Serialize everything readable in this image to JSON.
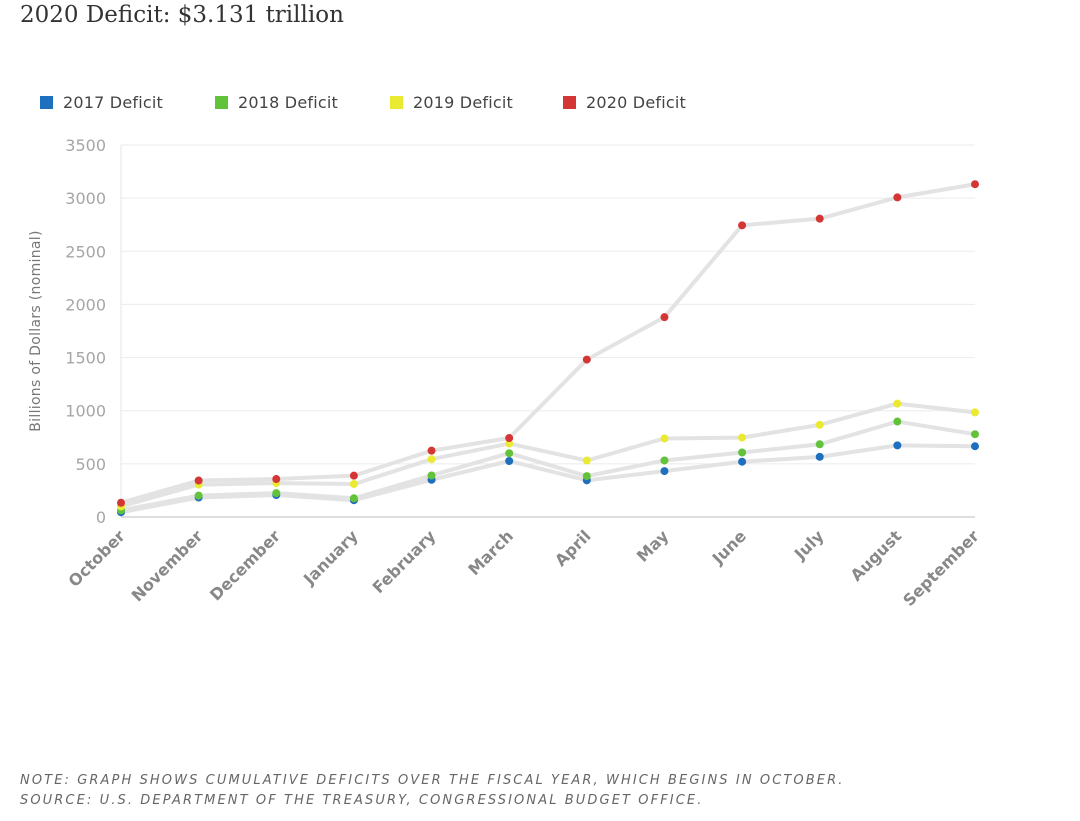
{
  "title": "2020 Deficit: $3.131 trillion",
  "note": "NOTE: GRAPH SHOWS CUMULATIVE DEFICITS OVER THE FISCAL YEAR, WHICH BEGINS IN OCTOBER.",
  "source": "SOURCE: U.S. DEPARTMENT OF THE TREASURY, CONGRESSIONAL BUDGET OFFICE.",
  "chart_data": {
    "type": "line",
    "title": "2020 Deficit: $3.131 trillion",
    "xlabel": "",
    "ylabel": "Billions of Dollars (nominal)",
    "ylim": [
      0,
      3500
    ],
    "yticks": [
      0,
      500,
      1000,
      1500,
      2000,
      2500,
      3000,
      3500
    ],
    "grid": true,
    "legend_position": "top-left",
    "line_color": "#e3e3e3",
    "categories": [
      "October",
      "November",
      "December",
      "January",
      "February",
      "March",
      "April",
      "May",
      "June",
      "July",
      "August",
      "September"
    ],
    "series": [
      {
        "name": "2017 Deficit",
        "color": "#1f6fbf",
        "values": [
          45,
          183,
          207,
          158,
          350,
          527,
          345,
          432,
          520,
          566,
          674,
          666
        ]
      },
      {
        "name": "2018 Deficit",
        "color": "#62c23a",
        "values": [
          63,
          201,
          225,
          176,
          391,
          600,
          385,
          532,
          607,
          684,
          898,
          779
        ]
      },
      {
        "name": "2019 Deficit",
        "color": "#eaea33",
        "values": [
          100,
          305,
          319,
          310,
          544,
          691,
          531,
          739,
          747,
          867,
          1067,
          984
        ]
      },
      {
        "name": "2020 Deficit",
        "color": "#d43535",
        "values": [
          134,
          343,
          357,
          389,
          624,
          743,
          1481,
          1880,
          2744,
          2807,
          3007,
          3131
        ]
      }
    ]
  }
}
